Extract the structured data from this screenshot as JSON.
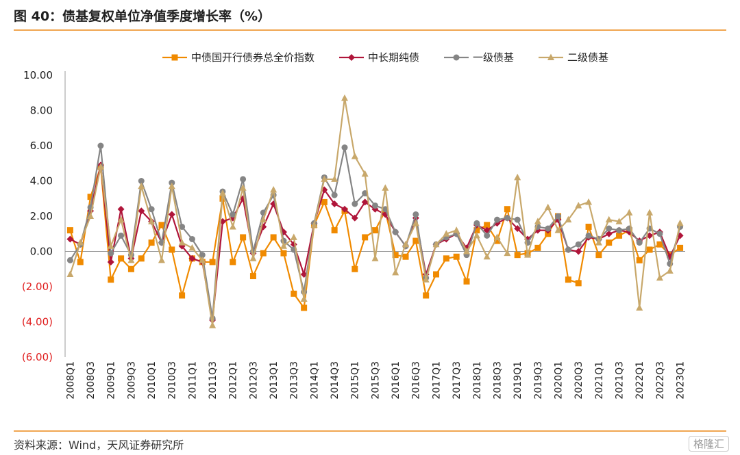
{
  "header": {
    "title": "图 40：债基复权单位净值季度增长率（%）"
  },
  "footer": {
    "source": "资料来源：Wind，天风证券研究所",
    "watermark": "格隆汇"
  },
  "chart_data": {
    "type": "line",
    "x": [
      "2008Q1",
      "2008Q2",
      "2008Q3",
      "2008Q4",
      "2009Q1",
      "2009Q2",
      "2009Q3",
      "2009Q4",
      "2010Q1",
      "2010Q2",
      "2010Q3",
      "2010Q4",
      "2011Q1",
      "2011Q2",
      "2011Q3",
      "2011Q4",
      "2012Q1",
      "2012Q2",
      "2012Q3",
      "2012Q4",
      "2013Q1",
      "2013Q2",
      "2013Q3",
      "2013Q4",
      "2014Q1",
      "2014Q2",
      "2014Q3",
      "2014Q4",
      "2015Q1",
      "2015Q2",
      "2015Q3",
      "2015Q4",
      "2016Q1",
      "2016Q2",
      "2016Q3",
      "2016Q4",
      "2017Q1",
      "2017Q2",
      "2017Q3",
      "2017Q4",
      "2018Q1",
      "2018Q2",
      "2018Q3",
      "2018Q4",
      "2019Q1",
      "2019Q2",
      "2019Q3",
      "2019Q4",
      "2020Q1",
      "2020Q2",
      "2020Q3",
      "2020Q4",
      "2021Q1",
      "2021Q2",
      "2021Q3",
      "2021Q4",
      "2022Q1",
      "2022Q2",
      "2022Q3",
      "2022Q4",
      "2023Q1"
    ],
    "xtick_labels": [
      "2008Q1",
      "2008Q3",
      "2009Q1",
      "2009Q3",
      "2010Q1",
      "2010Q3",
      "2011Q1",
      "2011Q3",
      "2012Q1",
      "2012Q3",
      "2013Q1",
      "2013Q3",
      "2014Q1",
      "2014Q3",
      "2015Q1",
      "2015Q3",
      "2016Q1",
      "2016Q3",
      "2017Q1",
      "2017Q3",
      "2018Q1",
      "2018Q3",
      "2019Q1",
      "2019Q3",
      "2020Q1",
      "2020Q3",
      "2021Q1",
      "2021Q3",
      "2022Q1",
      "2022Q3",
      "2023Q1"
    ],
    "ylim": [
      -6,
      10
    ],
    "ytick_labels": [
      "(6.00)",
      "(4.00)",
      "(2.00)",
      "0.00",
      "2.00",
      "4.00",
      "6.00",
      "8.00",
      "10.00"
    ],
    "ytick_values": [
      -6,
      -4,
      -2,
      0,
      2,
      4,
      6,
      8,
      10
    ],
    "negative_tick_color": "#e02020",
    "grid": false,
    "legend_position": "top-center",
    "series": [
      {
        "name": "中债国开行债券总全价指数",
        "color": "#f08a00",
        "marker": "square",
        "values": [
          1.2,
          -0.6,
          3.1,
          4.8,
          -1.6,
          -0.4,
          -1.0,
          -0.4,
          0.5,
          1.5,
          0.1,
          -2.5,
          -0.4,
          -0.6,
          -0.6,
          3.0,
          -0.6,
          0.8,
          -1.4,
          -0.1,
          0.8,
          -0.1,
          -2.4,
          -3.2,
          1.5,
          2.8,
          1.2,
          2.3,
          -1.0,
          0.8,
          1.2,
          2.3,
          -0.2,
          -0.3,
          0.6,
          -2.5,
          -1.3,
          -0.4,
          -0.3,
          -1.7,
          1.2,
          1.5,
          0.6,
          2.4,
          -0.2,
          -0.1,
          0.2,
          1.0,
          2.0,
          -1.6,
          -1.8,
          1.4,
          -0.2,
          0.5,
          0.9,
          1.2,
          -0.5,
          0.1,
          0.4,
          -0.2,
          0.2
        ]
      },
      {
        "name": "中长期纯债",
        "color": "#b0153a",
        "marker": "diamond",
        "values": [
          0.7,
          0.4,
          2.3,
          4.9,
          -0.6,
          2.4,
          -0.4,
          2.3,
          1.7,
          0.5,
          2.1,
          0.3,
          -0.4,
          -0.6,
          -3.9,
          1.7,
          1.9,
          3.0,
          -0.1,
          1.4,
          2.7,
          1.1,
          0.4,
          -1.3,
          1.6,
          3.5,
          2.7,
          2.4,
          1.9,
          2.8,
          2.4,
          2.1,
          1.1,
          0.3,
          1.9,
          -1.3,
          0.4,
          0.7,
          1.0,
          0.2,
          1.5,
          1.2,
          1.6,
          1.9,
          1.3,
          0.7,
          1.2,
          1.2,
          1.8,
          0.1,
          0.0,
          0.8,
          0.7,
          1.0,
          1.2,
          1.1,
          0.6,
          0.9,
          1.1,
          -0.3,
          0.9
        ]
      },
      {
        "name": "一级债基",
        "color": "#858585",
        "marker": "circle",
        "values": [
          -0.5,
          0.4,
          2.5,
          6.0,
          -0.1,
          0.9,
          -0.2,
          4.0,
          2.4,
          0.5,
          3.9,
          1.4,
          0.7,
          -0.2,
          -3.8,
          3.4,
          2.1,
          4.1,
          0.0,
          2.2,
          3.2,
          0.6,
          0.1,
          -2.3,
          1.6,
          4.2,
          3.2,
          5.9,
          2.7,
          3.3,
          2.6,
          2.4,
          1.1,
          0.3,
          2.1,
          -1.5,
          0.4,
          0.8,
          1.0,
          -0.2,
          1.6,
          0.9,
          1.8,
          1.9,
          1.8,
          0.5,
          1.4,
          1.3,
          2.0,
          0.1,
          0.4,
          0.9,
          0.7,
          1.3,
          1.2,
          1.3,
          0.5,
          1.3,
          1.0,
          -0.7,
          1.4
        ]
      },
      {
        "name": "二级债基",
        "color": "#c8a86b",
        "marker": "triangle",
        "values": [
          -1.3,
          0.5,
          2.0,
          4.8,
          0.3,
          1.8,
          -0.5,
          3.7,
          1.7,
          -0.5,
          3.7,
          0.5,
          0.2,
          -0.5,
          -4.2,
          3.3,
          1.4,
          3.6,
          -0.4,
          1.8,
          3.5,
          0.3,
          0.8,
          -2.7,
          1.5,
          4.1,
          4.1,
          8.7,
          5.4,
          4.4,
          -0.4,
          3.6,
          -1.2,
          0.4,
          1.6,
          -1.6,
          0.4,
          1.0,
          1.2,
          0.0,
          0.9,
          -0.3,
          0.8,
          -0.1,
          4.2,
          -0.2,
          1.7,
          2.5,
          1.2,
          1.8,
          2.6,
          2.8,
          0.5,
          1.8,
          1.7,
          2.2,
          -3.2,
          2.2,
          -1.5,
          -1.1,
          1.6
        ]
      }
    ]
  }
}
